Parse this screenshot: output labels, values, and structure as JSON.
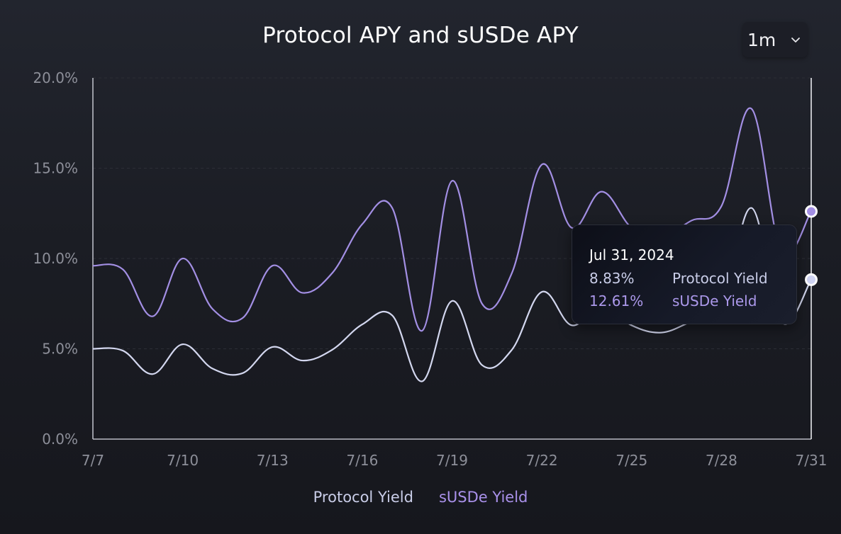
{
  "header": {
    "title": "Protocol APY and sUSDe APY",
    "range_selector": {
      "value": "1m",
      "icon": "chevron-down-icon"
    }
  },
  "colors": {
    "background": "#1b1d24",
    "protocol_line": "#d3d7ef",
    "susde_line": "#a38fe4",
    "axis": "#b9bbc4",
    "tick_text": "#8d8f99"
  },
  "axes": {
    "y_ticks": [
      "20.0%",
      "15.0%",
      "10.0%",
      "5.0%",
      "0.0%"
    ],
    "x_ticks": [
      "7/7",
      "7/10",
      "7/13",
      "7/16",
      "7/19",
      "7/22",
      "7/25",
      "7/28",
      "7/31"
    ]
  },
  "tooltip": {
    "date": "Jul 31, 2024",
    "rows": [
      {
        "value": "8.83%",
        "label": "Protocol Yield"
      },
      {
        "value": "12.61%",
        "label": "sUSDe Yield"
      }
    ]
  },
  "legend": {
    "items": [
      {
        "label": "Protocol Yield"
      },
      {
        "label": "sUSDe Yield"
      }
    ]
  },
  "chart_data": {
    "type": "line",
    "title": "Protocol APY and sUSDe APY",
    "xlabel": "",
    "ylabel": "",
    "ylim": [
      0,
      20
    ],
    "y_tick_format": "percent, 1 decimal",
    "grid": "horizontal dashed (faint)",
    "legend_position": "bottom-center",
    "x": [
      "7/7",
      "7/8",
      "7/9",
      "7/10",
      "7/11",
      "7/12",
      "7/13",
      "7/14",
      "7/15",
      "7/16",
      "7/17",
      "7/18",
      "7/19",
      "7/20",
      "7/21",
      "7/22",
      "7/23",
      "7/24",
      "7/25",
      "7/26",
      "7/27",
      "7/28",
      "7/29",
      "7/30",
      "7/31"
    ],
    "series": [
      {
        "name": "Protocol Yield",
        "color": "#d3d7ef",
        "values": [
          5.0,
          4.9,
          3.6,
          5.25,
          3.9,
          3.65,
          5.1,
          4.35,
          4.95,
          6.35,
          6.85,
          3.2,
          7.65,
          4.1,
          4.95,
          8.15,
          6.3,
          7.45,
          6.3,
          5.9,
          6.5,
          7.05,
          12.8,
          6.5,
          8.83
        ]
      },
      {
        "name": "sUSDe Yield",
        "color": "#a38fe4",
        "values": [
          9.6,
          9.4,
          6.8,
          10.0,
          7.2,
          6.7,
          9.6,
          8.1,
          9.2,
          11.9,
          12.8,
          6.0,
          14.3,
          7.5,
          9.2,
          15.2,
          11.7,
          13.7,
          11.7,
          11.2,
          12.1,
          12.9,
          18.3,
          10.4,
          12.61
        ]
      }
    ],
    "hover": {
      "x": "7/31",
      "label": "Jul 31, 2024",
      "Protocol Yield": 8.83,
      "sUSDe Yield": 12.61
    }
  }
}
